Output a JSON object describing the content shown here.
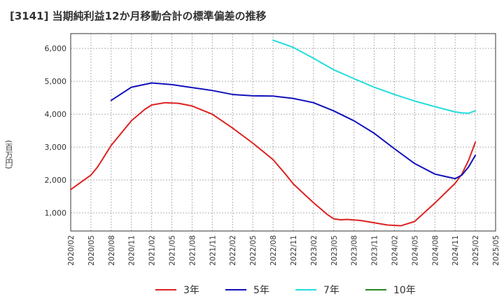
{
  "chart_data": {
    "type": "line",
    "title": "[3141]  当期純利益12か月移動合計の標準偏差の推移",
    "ylabel": "(百万円)",
    "xlabel": "",
    "ylim": [
      450,
      6450
    ],
    "yticks": [
      1000,
      2000,
      3000,
      4000,
      5000,
      6000
    ],
    "ytick_labels": [
      "1,000",
      "2,000",
      "3,000",
      "4,000",
      "5,000",
      "6,000"
    ],
    "x_range": [
      "2020/02",
      "2025/05"
    ],
    "x_tick_labels": [
      "2020/02",
      "2020/05",
      "2020/08",
      "2020/11",
      "2021/02",
      "2021/05",
      "2021/08",
      "2021/11",
      "2022/02",
      "2022/05",
      "2022/08",
      "2022/11",
      "2023/02",
      "2023/05",
      "2023/08",
      "2023/11",
      "2024/02",
      "2024/05",
      "2024/08",
      "2024/11",
      "2025/02",
      "2025/05"
    ],
    "grid": true,
    "legend_position": "bottom",
    "series": [
      {
        "name": "3年",
        "color": "#dd2222",
        "x": [
          "2020/02",
          "2020/05",
          "2020/06",
          "2020/08",
          "2020/11",
          "2021/01",
          "2021/02",
          "2021/04",
          "2021/06",
          "2021/08",
          "2021/11",
          "2022/02",
          "2022/05",
          "2022/08",
          "2022/10",
          "2022/11",
          "2023/02",
          "2023/04",
          "2023/05",
          "2023/06",
          "2023/07",
          "2023/09",
          "2023/11",
          "2024/01",
          "2024/03",
          "2024/05",
          "2024/08",
          "2024/11",
          "2024/12",
          "2025/01",
          "2025/02"
        ],
        "values": [
          1710,
          2150,
          2400,
          3050,
          3800,
          4150,
          4280,
          4350,
          4330,
          4250,
          4000,
          3580,
          3120,
          2620,
          2140,
          1880,
          1310,
          960,
          820,
          790,
          800,
          770,
          700,
          630,
          610,
          740,
          1300,
          1900,
          2180,
          2600,
          3150
        ]
      },
      {
        "name": "5年",
        "color": "#1111bb",
        "x": [
          "2020/08",
          "2020/11",
          "2021/02",
          "2021/05",
          "2021/08",
          "2021/11",
          "2022/02",
          "2022/05",
          "2022/08",
          "2022/11",
          "2023/02",
          "2023/05",
          "2023/08",
          "2023/11",
          "2024/02",
          "2024/05",
          "2024/08",
          "2024/11",
          "2024/12",
          "2025/01",
          "2025/02"
        ],
        "values": [
          4420,
          4820,
          4950,
          4900,
          4810,
          4720,
          4600,
          4560,
          4550,
          4480,
          4350,
          4100,
          3800,
          3420,
          2950,
          2500,
          2180,
          2040,
          2150,
          2400,
          2750
        ]
      },
      {
        "name": "7年",
        "color": "#22dddd",
        "x": [
          "2022/08",
          "2022/11",
          "2023/02",
          "2023/05",
          "2023/08",
          "2023/11",
          "2024/02",
          "2024/05",
          "2024/08",
          "2024/11",
          "2024/12",
          "2025/01",
          "2025/02"
        ],
        "values": [
          6250,
          6030,
          5700,
          5350,
          5080,
          4820,
          4600,
          4400,
          4230,
          4070,
          4040,
          4030,
          4100
        ]
      },
      {
        "name": "10年",
        "color": "#228822",
        "x": [],
        "values": []
      }
    ]
  }
}
